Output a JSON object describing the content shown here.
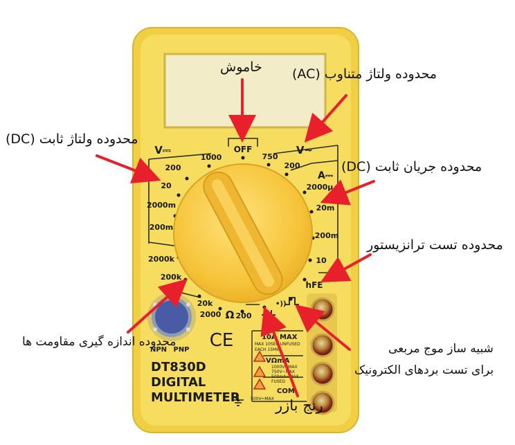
{
  "annotations": {
    "off": "خاموش",
    "ac_voltage": "محدوده ولتاژ متناوب (AC)",
    "dc_voltage": "محدوده ولتاژ ثابت (DC)",
    "dc_current": "محدوده جریان ثابت (DC)",
    "transistor": "محدوده تست ترانزیستور",
    "square_wave_line1": "شبیه ساز موج مربعی",
    "square_wave_line2": "برای تست بردهای الکترونیک",
    "resistance": "محدوده اندازه گیری مقاومت ها",
    "buzzer": "رنج بازر"
  },
  "device": {
    "model": "DT830D",
    "line1": "DIGITAL",
    "line2": "MULTIMETER",
    "ce_mark": "CE",
    "dial": {
      "off": "OFF",
      "dcv_symbol": "V⎓",
      "acv_symbol": "V~",
      "dca_symbol": "A⎓",
      "ohm_symbol": "Ω",
      "hfe": "hFE",
      "dcv_ranges": [
        "1000",
        "200",
        "20",
        "2000m",
        "200m"
      ],
      "acv_ranges": [
        "750",
        "200"
      ],
      "dca_ranges": [
        "2000μ",
        "20m",
        "200m",
        "10"
      ],
      "ohm_ranges": [
        "2000k",
        "200k",
        "20k",
        "2000",
        "200"
      ]
    },
    "socket": {
      "npn": "NPN",
      "pnp": "PNP"
    },
    "jacks": {
      "tenA": "10A",
      "tenA_note1": "MAX 10SEC UNFUSED",
      "tenA_note2": "EACH 15MIN",
      "vma": "VΩmA",
      "vma_note1": "1000V⎓MAX",
      "vma_note2": "750V~MAX",
      "vma_note3": "500mA⎓MAX",
      "vma_note4": "FUSED",
      "com": "COM",
      "com_note": "500V⎓MAX",
      "max": "MAX"
    }
  },
  "colors": {
    "body": "#f6dc5f",
    "bezel": "#f0cf43",
    "knob": "#f7c843",
    "arrow": "#e8202c",
    "jack": "#a8281e"
  }
}
